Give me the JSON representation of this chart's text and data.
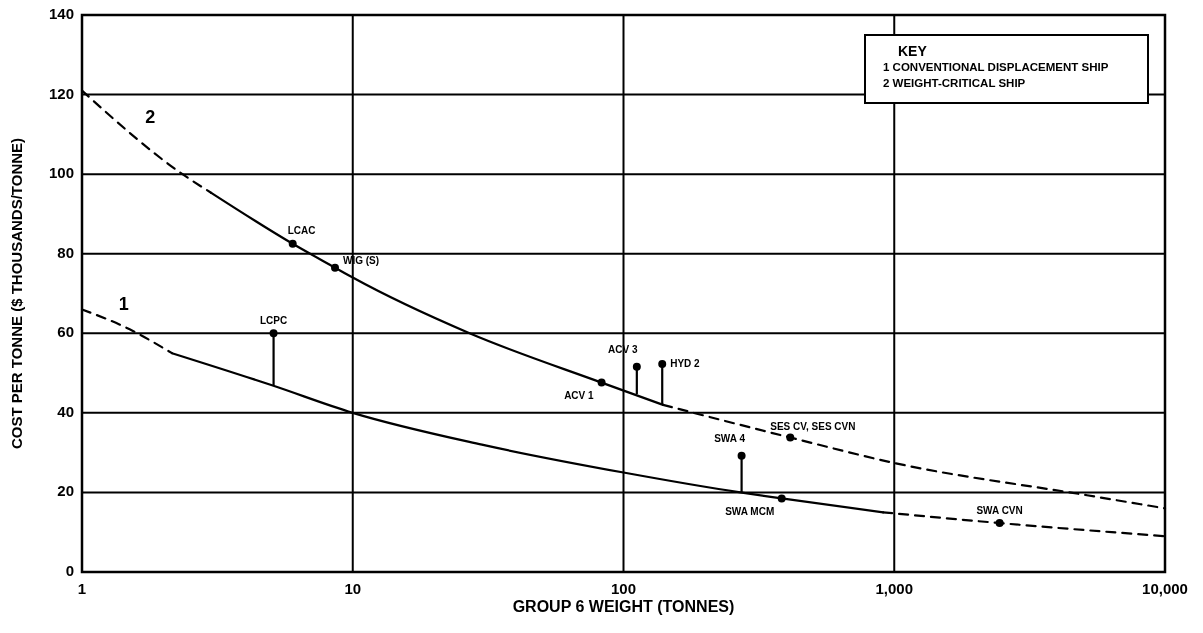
{
  "chart_data": {
    "type": "line",
    "xlabel": "GROUP 6 WEIGHT (TONNES)",
    "ylabel": "COST PER TONNE ($ THOUSANDS/TONNE)",
    "log": "x",
    "xlim": [
      1,
      10000
    ],
    "ylim": [
      0,
      140
    ],
    "xticks": [
      1,
      10,
      100,
      {
        "value": 1000,
        "label": "1,000"
      },
      {
        "value": 10000,
        "label": "10,000"
      }
    ],
    "yticks": [
      0,
      20,
      40,
      60,
      80,
      100,
      120,
      140
    ],
    "grid": true,
    "series": [
      {
        "name": "1",
        "color": "#000000",
        "line_style": "dashed",
        "x": [
          1,
          1.5,
          2.15
        ],
        "values": [
          66,
          61,
          55
        ]
      },
      {
        "color": "#000000",
        "line_style": "solid",
        "x": [
          2.15,
          5,
          10,
          30,
          100,
          270,
          384,
          910
        ],
        "values": [
          55,
          47,
          40,
          32,
          25,
          20,
          18.5,
          15
        ]
      },
      {
        "color": "#000000",
        "line_style": "dashed",
        "x": [
          910,
          2450,
          10000
        ],
        "values": [
          15,
          12.3,
          9
        ]
      },
      {
        "name": "2",
        "color": "#000000",
        "line_style": "dashed",
        "x": [
          1,
          2.35,
          3
        ],
        "values": [
          121,
          100,
          95.3
        ]
      },
      {
        "color": "#000000",
        "line_style": "solid",
        "x": [
          3,
          6,
          8.6,
          10,
          27,
          83,
          140
        ],
        "values": [
          95.3,
          82.5,
          76.5,
          74,
          60,
          47.6,
          42
        ]
      },
      {
        "color": "#000000",
        "line_style": "dashed",
        "x": [
          140,
          413,
          1000,
          5150,
          10000
        ],
        "values": [
          42,
          33.8,
          27.4,
          19.3,
          16
        ]
      },
      {
        "type": "scatter",
        "color": "#000000",
        "marker": "circle",
        "x": [
          5.1,
          6,
          8.6,
          83,
          112,
          139,
          413,
          273,
          384,
          2450
        ],
        "values": [
          60,
          82.5,
          76.5,
          47.6,
          51.6,
          52.3,
          33.8,
          29.2,
          18.5,
          12.3
        ],
        "errors": [
          [
            47,
            60
          ],
          null,
          null,
          null,
          [
            44.7,
            51.6
          ],
          [
            42,
            52.3
          ],
          null,
          [
            20,
            29.2
          ],
          null,
          null
        ]
      }
    ],
    "annotations": [
      "KEY",
      "1 CONVENTIONAL DISPLACEMENT SHIP",
      "2 WEIGHT-CRITICAL SHIP",
      {
        "text": "LCPC",
        "x": 5.1,
        "y": 60
      },
      {
        "text": "LCAC",
        "x": 6,
        "y": 82.5
      },
      {
        "text": "WIG (S)",
        "x": 8.6,
        "y": 76.5
      },
      {
        "text": "ACV 1",
        "x": 83,
        "y": 47.6
      },
      {
        "text": "ACV 3",
        "x": 112,
        "y": 51.6
      },
      {
        "text": "HYD 2",
        "x": 139,
        "y": 52.3
      },
      {
        "text": "SES CV, SES CVN",
        "x": 413,
        "y": 33.8
      },
      {
        "text": "SWA 4",
        "x": 273,
        "y": 29.2
      },
      {
        "text": "SWA MCM",
        "x": 384,
        "y": 18.5
      },
      {
        "text": "SWA CVN",
        "x": 2450,
        "y": 12.3
      }
    ]
  }
}
